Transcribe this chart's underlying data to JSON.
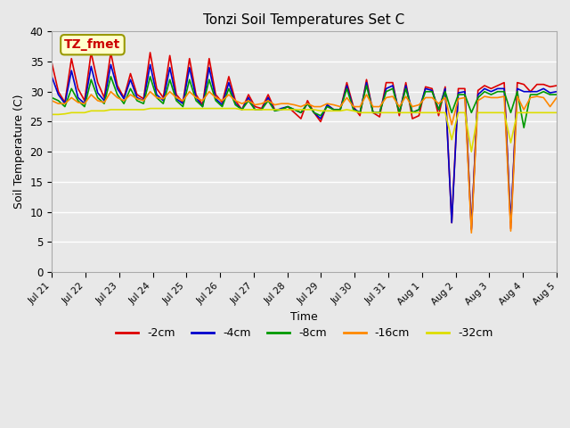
{
  "title": "Tonzi Soil Temperatures Set C",
  "xlabel": "Time",
  "ylabel": "Soil Temperature (C)",
  "annotation_text": "TZ_fmet",
  "annotation_bg": "#ffffcc",
  "annotation_border": "#999900",
  "annotation_color": "#cc0000",
  "ylim": [
    0,
    40
  ],
  "yticks": [
    0,
    5,
    10,
    15,
    20,
    25,
    30,
    35,
    40
  ],
  "xtick_labels": [
    "Jul 21",
    "Jul 22",
    "Jul 23",
    "Jul 24",
    "Jul 25",
    "Jul 26",
    "Jul 27",
    "Jul 28",
    "Jul 29",
    "Jul 30",
    "Jul 31",
    "Aug 1",
    "Aug 2",
    "Aug 3",
    "Aug 4",
    "Aug 5"
  ],
  "series_colors": [
    "#dd0000",
    "#0000cc",
    "#009900",
    "#ff8800",
    "#dddd00"
  ],
  "series_labels": [
    "-2cm",
    "-4cm",
    "-8cm",
    "-16cm",
    "-32cm"
  ],
  "background_color": "#e8e8e8",
  "plot_bg": "#e8e8e8",
  "grid_color": "#ffffff",
  "series": {
    "neg2cm": [
      34.8,
      30.0,
      28.2,
      35.5,
      30.5,
      28.5,
      36.5,
      31.5,
      29.0,
      36.5,
      31.0,
      29.0,
      33.0,
      29.5,
      28.8,
      36.5,
      30.5,
      29.0,
      36.0,
      29.5,
      28.2,
      35.5,
      29.5,
      27.8,
      35.5,
      29.5,
      28.2,
      32.5,
      28.5,
      27.0,
      29.5,
      27.5,
      27.2,
      29.5,
      27.0,
      27.0,
      27.5,
      26.5,
      25.5,
      28.5,
      26.5,
      25.0,
      27.8,
      27.0,
      27.0,
      31.5,
      27.5,
      26.0,
      32.0,
      26.5,
      25.8,
      31.5,
      31.5,
      26.0,
      31.5,
      25.5,
      26.0,
      30.8,
      30.5,
      26.0,
      30.8,
      8.2,
      30.5,
      30.5,
      7.0,
      30.2,
      31.0,
      30.5,
      31.0,
      31.5,
      7.2,
      31.5,
      31.2,
      30.0,
      31.2,
      31.2,
      30.8,
      31.0
    ],
    "neg4cm": [
      32.5,
      29.5,
      28.0,
      33.5,
      29.0,
      28.0,
      34.2,
      29.8,
      28.5,
      34.5,
      30.5,
      28.8,
      32.0,
      29.0,
      28.5,
      34.5,
      29.5,
      28.5,
      34.0,
      28.8,
      28.0,
      34.0,
      29.0,
      27.5,
      34.0,
      28.8,
      27.8,
      31.5,
      28.0,
      27.0,
      29.0,
      27.0,
      27.0,
      29.0,
      26.8,
      27.2,
      27.5,
      27.0,
      26.5,
      28.0,
      26.5,
      25.5,
      27.8,
      27.0,
      27.0,
      31.0,
      27.2,
      26.5,
      31.5,
      26.5,
      26.5,
      30.5,
      31.0,
      26.5,
      31.0,
      26.5,
      27.0,
      30.5,
      30.2,
      27.0,
      30.5,
      8.2,
      29.8,
      30.0,
      7.2,
      29.5,
      30.5,
      30.0,
      30.5,
      30.5,
      8.2,
      30.5,
      30.0,
      30.0,
      30.0,
      30.5,
      29.8,
      30.0
    ],
    "neg8cm": [
      29.0,
      28.5,
      27.5,
      30.5,
      28.5,
      27.5,
      32.0,
      29.0,
      28.0,
      32.5,
      29.5,
      28.0,
      30.5,
      28.5,
      28.0,
      32.5,
      29.0,
      28.0,
      32.0,
      28.5,
      27.5,
      32.0,
      28.5,
      27.5,
      32.0,
      28.5,
      27.5,
      30.5,
      27.8,
      27.0,
      28.5,
      27.0,
      27.0,
      28.5,
      26.8,
      27.0,
      27.5,
      27.0,
      26.5,
      28.0,
      26.5,
      26.0,
      27.5,
      27.0,
      27.0,
      30.5,
      27.0,
      26.5,
      31.0,
      26.5,
      26.5,
      30.0,
      30.5,
      26.5,
      30.5,
      26.5,
      27.0,
      30.0,
      30.0,
      27.0,
      30.0,
      26.5,
      29.5,
      29.5,
      26.5,
      29.0,
      30.0,
      29.5,
      30.0,
      30.0,
      26.5,
      30.0,
      24.0,
      29.5,
      29.5,
      30.0,
      29.5,
      29.5
    ],
    "neg16cm": [
      28.5,
      28.0,
      28.0,
      29.0,
      28.2,
      28.0,
      29.5,
      28.5,
      28.2,
      30.0,
      29.0,
      28.5,
      29.5,
      28.8,
      28.5,
      30.0,
      29.0,
      28.8,
      30.0,
      29.0,
      28.5,
      30.0,
      29.0,
      28.5,
      30.0,
      29.0,
      28.5,
      29.5,
      28.5,
      28.0,
      28.5,
      27.8,
      28.0,
      28.5,
      27.8,
      28.0,
      28.0,
      27.8,
      27.5,
      28.0,
      27.5,
      27.5,
      28.0,
      27.8,
      27.5,
      29.0,
      27.5,
      27.5,
      29.5,
      27.5,
      27.5,
      29.0,
      29.2,
      27.5,
      29.2,
      27.5,
      27.8,
      29.0,
      29.0,
      28.0,
      29.0,
      24.5,
      28.8,
      29.0,
      6.5,
      28.5,
      29.2,
      29.0,
      29.0,
      29.2,
      6.8,
      29.2,
      27.0,
      29.0,
      29.2,
      29.0,
      27.5,
      29.0
    ],
    "neg32cm": [
      26.2,
      26.2,
      26.3,
      26.5,
      26.5,
      26.5,
      26.8,
      26.8,
      26.8,
      27.0,
      27.0,
      27.0,
      27.0,
      27.0,
      27.0,
      27.2,
      27.2,
      27.2,
      27.2,
      27.2,
      27.2,
      27.2,
      27.2,
      27.2,
      27.2,
      27.2,
      27.2,
      27.2,
      27.2,
      27.0,
      27.0,
      27.0,
      27.0,
      27.0,
      27.0,
      27.0,
      27.0,
      27.0,
      27.0,
      27.0,
      27.0,
      26.8,
      26.8,
      26.8,
      26.8,
      27.0,
      26.8,
      26.5,
      26.5,
      26.5,
      26.5,
      26.5,
      26.5,
      26.5,
      26.5,
      26.5,
      26.5,
      26.5,
      26.5,
      26.5,
      26.5,
      22.0,
      26.5,
      26.5,
      20.0,
      26.5,
      26.5,
      26.5,
      26.5,
      26.5,
      21.5,
      26.5,
      26.5,
      26.5,
      26.5,
      26.5,
      26.5,
      26.5
    ]
  }
}
